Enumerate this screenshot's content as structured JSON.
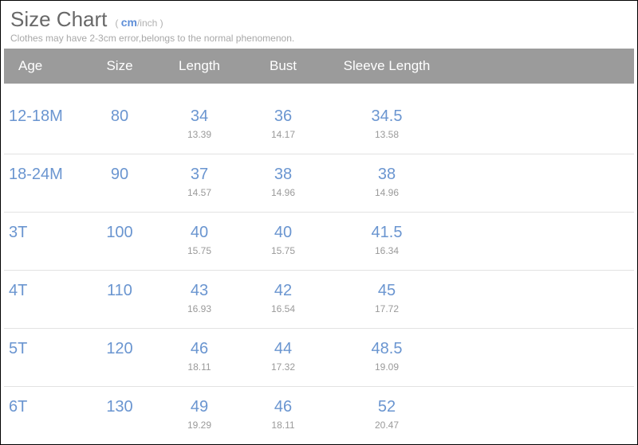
{
  "header": {
    "title": "Size Chart",
    "unit_paren_open": "( ",
    "unit_cm": "cm",
    "unit_inch": "/inch )",
    "subtitle": "Clothes may have 2-3cm error,belongs to the normal phenomenon."
  },
  "table": {
    "columns": {
      "age": "Age",
      "size": "Size",
      "length": "Length",
      "bust": "Bust",
      "sleeve": "Sleeve Length"
    },
    "rows": [
      {
        "age": "12-18M",
        "size": "80",
        "length_cm": "34",
        "length_in": "13.39",
        "bust_cm": "36",
        "bust_in": "14.17",
        "sleeve_cm": "34.5",
        "sleeve_in": "13.58"
      },
      {
        "age": "18-24M",
        "size": "90",
        "length_cm": "37",
        "length_in": "14.57",
        "bust_cm": "38",
        "bust_in": "14.96",
        "sleeve_cm": "38",
        "sleeve_in": "14.96"
      },
      {
        "age": "3T",
        "size": "100",
        "length_cm": "40",
        "length_in": "15.75",
        "bust_cm": "40",
        "bust_in": "15.75",
        "sleeve_cm": "41.5",
        "sleeve_in": "16.34"
      },
      {
        "age": "4T",
        "size": "110",
        "length_cm": "43",
        "length_in": "16.93",
        "bust_cm": "42",
        "bust_in": "16.54",
        "sleeve_cm": "45",
        "sleeve_in": "17.72"
      },
      {
        "age": "5T",
        "size": "120",
        "length_cm": "46",
        "length_in": "18.11",
        "bust_cm": "44",
        "bust_in": "17.32",
        "sleeve_cm": "48.5",
        "sleeve_in": "19.09"
      },
      {
        "age": "6T",
        "size": "130",
        "length_cm": "49",
        "length_in": "19.29",
        "bust_cm": "46",
        "bust_in": "18.11",
        "sleeve_cm": "52",
        "sleeve_in": "20.47"
      }
    ]
  },
  "colors": {
    "header_bg": "#9b9b9b",
    "header_text": "#ffffff",
    "row_border": "#e2e2e2",
    "cm_color": "#6a95d0",
    "inch_color": "#9a9a9a",
    "title_color": "#686868"
  }
}
